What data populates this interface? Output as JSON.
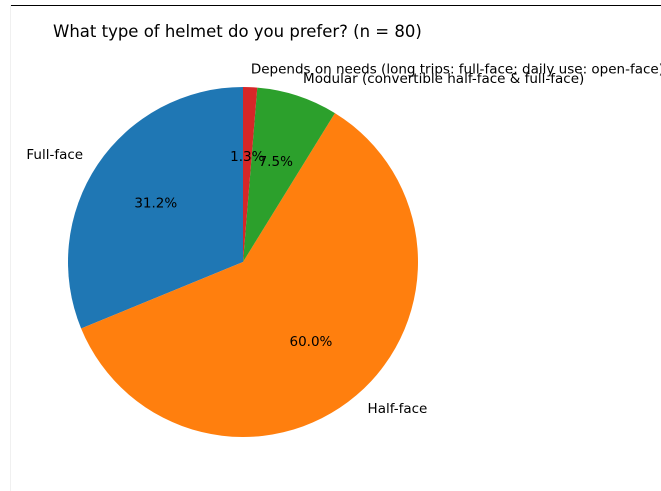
{
  "chart_data": {
    "type": "pie",
    "title": "What type of helmet do you prefer? (n = 80)",
    "categories": [
      "Full-face",
      "Half-face",
      "Modular (convertible half-face & full-face)",
      "Depends on needs (long trips: full-face; daily use: open-face)"
    ],
    "values": [
      31.2,
      60.0,
      7.5,
      1.3
    ],
    "value_labels": [
      "31.2%",
      "60.0%",
      "7.5%",
      "1.3%"
    ],
    "colors": [
      "#1f77b4",
      "#ff7f0e",
      "#2ca02c",
      "#d62728"
    ],
    "start_angle_deg": 90,
    "direction": "counterclockwise",
    "legend": "none"
  }
}
